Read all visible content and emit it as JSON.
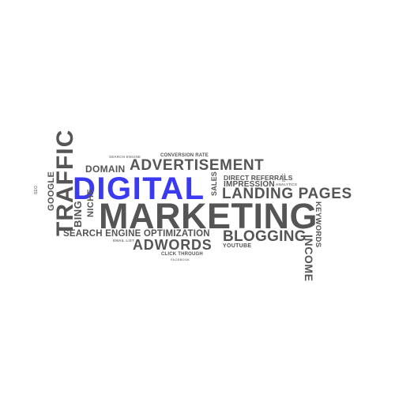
{
  "accent_color": "#3a3af2",
  "text_color": "#555555",
  "background": "#ffffff",
  "words": {
    "digital": "DIGITAL",
    "marketing": "MARKETING",
    "advertisement": "ADVERTISEMENT",
    "domain": "DOMAIN",
    "landing_pages": "LANDING PAGES",
    "search_engine_optimization": "SEARCH ENGINE OPTIMIZATION",
    "blogging": "BLOGGING",
    "adwords": "ADWORDS",
    "traffic": "TRAFFIC",
    "google": "GOOGLE",
    "bing": "BING",
    "niche": "NICHE",
    "sales": "SALES",
    "impression": "IMPRESSION",
    "direct_referrals": "DIRECT REFERRALS",
    "conversion_rate": "CONVERSION RATE",
    "income": "INCOME",
    "keywords": "KEYWORDS",
    "youtube": "YOUTUBE",
    "click_through": "CLICK THROUGH",
    "email_list": "EMAIL LIST",
    "analytics": "ANALYTICS",
    "seo": "SEO",
    "ppc": "PPC",
    "tiny_top": "SEARCH ENGINE",
    "tiny_bottom": "FACEBOOK"
  }
}
